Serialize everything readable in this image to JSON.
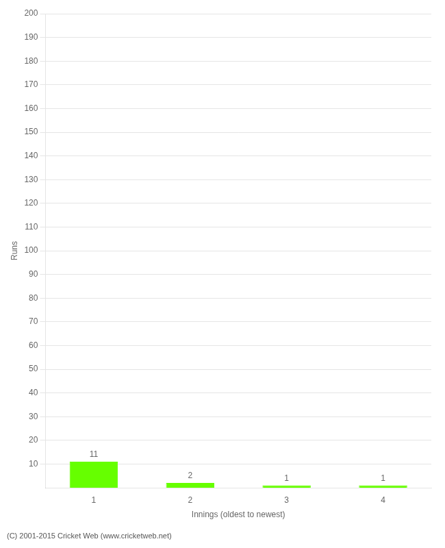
{
  "chart_data": {
    "type": "bar",
    "categories": [
      "1",
      "2",
      "3",
      "4"
    ],
    "values": [
      11,
      2,
      1,
      1
    ],
    "color": "#66ff00",
    "xlabel": "Innings (oldest to newest)",
    "ylabel": "Runs",
    "ylim": [
      0,
      200
    ],
    "yticks": [
      10,
      20,
      30,
      40,
      50,
      60,
      70,
      80,
      90,
      100,
      110,
      120,
      130,
      140,
      150,
      160,
      170,
      180,
      190,
      200
    ],
    "grid": true,
    "data_labels": true,
    "annotations": [
      "(C) 2001-2015 Cricket Web (www.cricketweb.net)"
    ]
  }
}
